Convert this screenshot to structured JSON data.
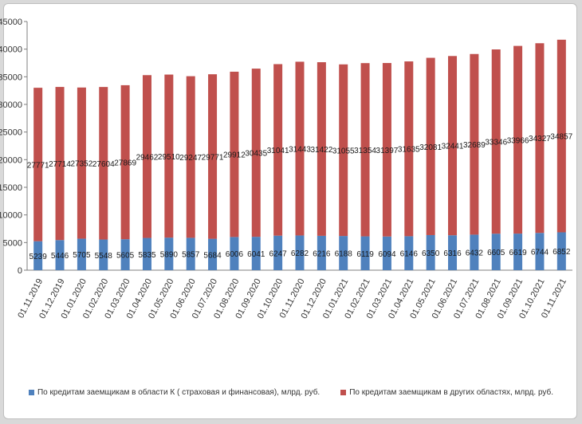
{
  "chart_data": {
    "type": "bar",
    "stacked": true,
    "categories": [
      "01.11.2019",
      "01.12.2019",
      "01.01.2020",
      "01.02.2020",
      "01.03.2020",
      "01.04.2020",
      "01.05.2020",
      "01.06.2020",
      "01.07.2020",
      "01.08.2020",
      "01.09.2020",
      "01.10.2020",
      "01.11.2020",
      "01.12.2020",
      "01.01.2021",
      "01.02.2021",
      "01.03.2021",
      "01.04.2021",
      "01.05.2021",
      "01.06.2021",
      "01.07.2021",
      "01.08.2021",
      "01.09.2021",
      "01.10.2021",
      "01.11.2021"
    ],
    "series": [
      {
        "name": "По кредитам заемщикам в области К ( страховая и финансовая), млрд. руб.",
        "color": "#4f81bd",
        "values": [
          5239,
          5446,
          5705,
          5548,
          5605,
          5835,
          5890,
          5857,
          5684,
          6006,
          6041,
          6247,
          6282,
          6216,
          6188,
          6119,
          6094,
          6146,
          6350,
          6316,
          6432,
          6605,
          6619,
          6744,
          6852
        ]
      },
      {
        "name": "По кредитам заемщикам в других областях, млрд. руб.",
        "color": "#c0504d",
        "values": [
          27771,
          27714,
          27352,
          27604,
          27869,
          29462,
          29510,
          29247,
          29771,
          29912,
          30435,
          31041,
          31443,
          31422,
          31055,
          31354,
          31397,
          31635,
          32081,
          32441,
          32689,
          33346,
          33966,
          34327,
          34857
        ]
      }
    ],
    "yticks": [
      "0",
      "5000",
      "10000",
      "15000",
      "20000",
      "25000",
      "30000",
      "35000",
      "40000",
      "45000"
    ],
    "ylim": [
      0,
      45000
    ],
    "grid": false,
    "legend_position": "bottom"
  }
}
